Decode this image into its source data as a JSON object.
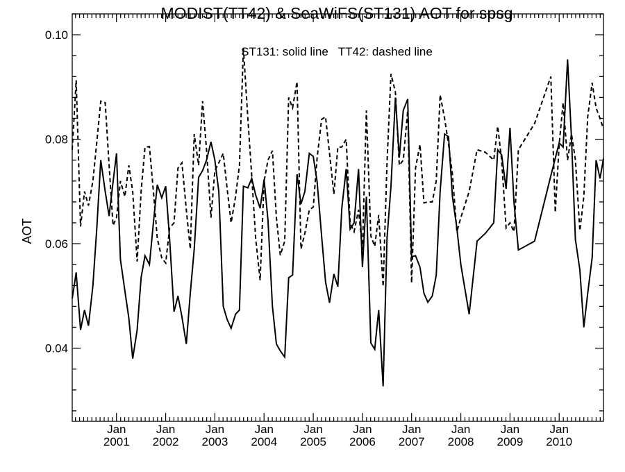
{
  "chart_data": {
    "type": "line",
    "title": "MODIST(TT42) & SeaWiFS(ST131)  AOT for spsg",
    "annotation": "ST131: solid line   TT42: dashed line",
    "xlabel": "",
    "ylabel": "AOT",
    "xlim": [
      2000.1,
      2010.9
    ],
    "ylim": [
      0.026,
      0.104
    ],
    "y_ticks": [
      0.04,
      0.06,
      0.08,
      0.1
    ],
    "y_tick_labels": [
      "0.04",
      "0.06",
      "0.08",
      "0.10"
    ],
    "x_ticks": [
      2001.0,
      2002.0,
      2003.0,
      2004.0,
      2005.0,
      2006.0,
      2007.0,
      2008.0,
      2009.0,
      2010.0
    ],
    "x_tick_month": "Jan",
    "x_tick_years": [
      "2001",
      "2002",
      "2003",
      "2004",
      "2005",
      "2006",
      "2007",
      "2008",
      "2009",
      "2010"
    ],
    "grid": false,
    "series": [
      {
        "name": "ST131",
        "style": "solid",
        "color": "#000000",
        "points": [
          [
            2000.1,
            0.0495
          ],
          [
            2000.18,
            0.0545
          ],
          [
            2000.27,
            0.0435
          ],
          [
            2000.35,
            0.0473
          ],
          [
            2000.43,
            0.0443
          ],
          [
            2000.52,
            0.052
          ],
          [
            2000.6,
            0.063
          ],
          [
            2000.68,
            0.076
          ],
          [
            2000.77,
            0.07
          ],
          [
            2000.85,
            0.0653
          ],
          [
            2000.93,
            0.0718
          ],
          [
            2001.0,
            0.0773
          ],
          [
            2001.08,
            0.057
          ],
          [
            2001.17,
            0.051
          ],
          [
            2001.25,
            0.0458
          ],
          [
            2001.33,
            0.038
          ],
          [
            2001.42,
            0.0435
          ],
          [
            2001.5,
            0.0535
          ],
          [
            2001.58,
            0.0577
          ],
          [
            2001.67,
            0.056
          ],
          [
            2001.75,
            0.064
          ],
          [
            2001.83,
            0.0713
          ],
          [
            2001.92,
            0.0688
          ],
          [
            2002.0,
            0.071
          ],
          [
            2002.08,
            0.061
          ],
          [
            2002.17,
            0.047
          ],
          [
            2002.25,
            0.05
          ],
          [
            2002.33,
            0.046
          ],
          [
            2002.42,
            0.0408
          ],
          [
            2002.5,
            0.0505
          ],
          [
            2002.58,
            0.059
          ],
          [
            2002.67,
            0.0727
          ],
          [
            2002.75,
            0.074
          ],
          [
            2002.83,
            0.076
          ],
          [
            2002.92,
            0.0795
          ],
          [
            2003.0,
            0.076
          ],
          [
            2003.08,
            0.07
          ],
          [
            2003.17,
            0.048
          ],
          [
            2003.25,
            0.0455
          ],
          [
            2003.33,
            0.0438
          ],
          [
            2003.42,
            0.0465
          ],
          [
            2003.5,
            0.0473
          ],
          [
            2003.58,
            0.071
          ],
          [
            2003.67,
            0.0707
          ],
          [
            2003.75,
            0.0725
          ],
          [
            2003.83,
            0.0693
          ],
          [
            2003.92,
            0.0668
          ],
          [
            2004.0,
            0.0723
          ],
          [
            2004.08,
            0.0645
          ],
          [
            2004.17,
            0.048
          ],
          [
            2004.25,
            0.0408
          ],
          [
            2004.33,
            0.0395
          ],
          [
            2004.42,
            0.0383
          ],
          [
            2004.5,
            0.0535
          ],
          [
            2004.58,
            0.054
          ],
          [
            2004.67,
            0.0733
          ],
          [
            2004.75,
            0.0676
          ],
          [
            2004.83,
            0.07
          ],
          [
            2004.92,
            0.0773
          ],
          [
            2005.0,
            0.0767
          ],
          [
            2005.08,
            0.0718
          ],
          [
            2005.17,
            0.0615
          ],
          [
            2005.25,
            0.0527
          ],
          [
            2005.33,
            0.0487
          ],
          [
            2005.42,
            0.0542
          ],
          [
            2005.5,
            0.0518
          ],
          [
            2005.58,
            0.0668
          ],
          [
            2005.67,
            0.0743
          ],
          [
            2005.75,
            0.0628
          ],
          [
            2005.83,
            0.064
          ],
          [
            2005.92,
            0.0743
          ],
          [
            2006.0,
            0.0555
          ],
          [
            2006.08,
            0.069
          ],
          [
            2006.17,
            0.041
          ],
          [
            2006.25,
            0.0398
          ],
          [
            2006.33,
            0.0473
          ],
          [
            2006.42,
            0.0327
          ],
          [
            2006.5,
            0.061
          ],
          [
            2006.58,
            0.071
          ],
          [
            2006.67,
            0.088
          ],
          [
            2006.75,
            0.0765
          ],
          [
            2006.83,
            0.0855
          ],
          [
            2006.92,
            0.0877
          ],
          [
            2007.0,
            0.0575
          ],
          [
            2007.08,
            0.0577
          ],
          [
            2007.17,
            0.0555
          ],
          [
            2007.25,
            0.0505
          ],
          [
            2007.33,
            0.0488
          ],
          [
            2007.42,
            0.05
          ],
          [
            2007.5,
            0.054
          ],
          [
            2007.58,
            0.07
          ],
          [
            2007.67,
            0.081
          ],
          [
            2007.75,
            0.0805
          ],
          [
            2007.83,
            0.069
          ],
          [
            2007.92,
            0.063
          ],
          [
            2008.0,
            0.056
          ],
          [
            2008.17,
            0.0465
          ],
          [
            2008.33,
            0.0605
          ],
          [
            2008.5,
            0.062
          ],
          [
            2008.67,
            0.064
          ],
          [
            2008.75,
            0.078
          ],
          [
            2008.83,
            0.077
          ],
          [
            2008.92,
            0.0705
          ],
          [
            2009.0,
            0.0822
          ],
          [
            2009.08,
            0.068
          ],
          [
            2009.17,
            0.0588
          ],
          [
            2009.5,
            0.0605
          ],
          [
            2009.83,
            0.073
          ],
          [
            2010.0,
            0.0793
          ],
          [
            2010.08,
            0.0785
          ],
          [
            2010.17,
            0.0953
          ],
          [
            2010.25,
            0.08
          ],
          [
            2010.33,
            0.0608
          ],
          [
            2010.42,
            0.055
          ],
          [
            2010.5,
            0.044
          ],
          [
            2010.58,
            0.0505
          ],
          [
            2010.67,
            0.0573
          ],
          [
            2010.75,
            0.076
          ],
          [
            2010.83,
            0.0725
          ],
          [
            2010.9,
            0.0763
          ]
        ]
      },
      {
        "name": "TT42",
        "style": "dashed",
        "color": "#000000",
        "points": [
          [
            2000.1,
            0.078
          ],
          [
            2000.18,
            0.0913
          ],
          [
            2000.27,
            0.0633
          ],
          [
            2000.35,
            0.07
          ],
          [
            2000.43,
            0.0673
          ],
          [
            2000.52,
            0.072
          ],
          [
            2000.6,
            0.0795
          ],
          [
            2000.68,
            0.0873
          ],
          [
            2000.77,
            0.087
          ],
          [
            2000.85,
            0.075
          ],
          [
            2000.93,
            0.0635
          ],
          [
            2001.0,
            0.065
          ],
          [
            2001.08,
            0.072
          ],
          [
            2001.17,
            0.069
          ],
          [
            2001.25,
            0.075
          ],
          [
            2001.33,
            0.07
          ],
          [
            2001.42,
            0.0566
          ],
          [
            2001.5,
            0.07
          ],
          [
            2001.58,
            0.0785
          ],
          [
            2001.67,
            0.0786
          ],
          [
            2001.75,
            0.07
          ],
          [
            2001.83,
            0.061
          ],
          [
            2001.92,
            0.0573
          ],
          [
            2002.0,
            0.0563
          ],
          [
            2002.08,
            0.063
          ],
          [
            2002.17,
            0.064
          ],
          [
            2002.25,
            0.0745
          ],
          [
            2002.33,
            0.0755
          ],
          [
            2002.42,
            0.0665
          ],
          [
            2002.5,
            0.059
          ],
          [
            2002.58,
            0.081
          ],
          [
            2002.67,
            0.075
          ],
          [
            2002.75,
            0.0873
          ],
          [
            2002.83,
            0.078
          ],
          [
            2002.92,
            0.065
          ],
          [
            2003.0,
            0.074
          ],
          [
            2003.08,
            0.0755
          ],
          [
            2003.17,
            0.0773
          ],
          [
            2003.25,
            0.0705
          ],
          [
            2003.33,
            0.064
          ],
          [
            2003.42,
            0.069
          ],
          [
            2003.5,
            0.075
          ],
          [
            2003.58,
            0.0975
          ],
          [
            2003.67,
            0.084
          ],
          [
            2003.75,
            0.073
          ],
          [
            2003.83,
            0.061
          ],
          [
            2003.92,
            0.053
          ],
          [
            2004.0,
            0.072
          ],
          [
            2004.08,
            0.076
          ],
          [
            2004.17,
            0.0778
          ],
          [
            2004.25,
            0.065
          ],
          [
            2004.33,
            0.0578
          ],
          [
            2004.42,
            0.0605
          ],
          [
            2004.5,
            0.088
          ],
          [
            2004.58,
            0.086
          ],
          [
            2004.67,
            0.091
          ],
          [
            2004.75,
            0.059
          ],
          [
            2004.83,
            0.062
          ],
          [
            2004.92,
            0.0665
          ],
          [
            2005.0,
            0.067
          ],
          [
            2005.08,
            0.0765
          ],
          [
            2005.17,
            0.0838
          ],
          [
            2005.25,
            0.0843
          ],
          [
            2005.33,
            0.0773
          ],
          [
            2005.42,
            0.0695
          ],
          [
            2005.5,
            0.0785
          ],
          [
            2005.58,
            0.0785
          ],
          [
            2005.67,
            0.08
          ],
          [
            2005.75,
            0.064
          ],
          [
            2005.83,
            0.0623
          ],
          [
            2005.92,
            0.0665
          ],
          [
            2006.0,
            0.0588
          ],
          [
            2006.08,
            0.0855
          ],
          [
            2006.17,
            0.0615
          ],
          [
            2006.25,
            0.0595
          ],
          [
            2006.33,
            0.0655
          ],
          [
            2006.42,
            0.0518
          ],
          [
            2006.5,
            0.0755
          ],
          [
            2006.58,
            0.0925
          ],
          [
            2006.67,
            0.089
          ],
          [
            2006.75,
            0.075
          ],
          [
            2006.83,
            0.076
          ],
          [
            2006.92,
            0.0855
          ],
          [
            2007.0,
            0.0525
          ],
          [
            2007.08,
            0.0745
          ],
          [
            2007.17,
            0.079
          ],
          [
            2007.25,
            0.0678
          ],
          [
            2007.33,
            0.068
          ],
          [
            2007.42,
            0.068
          ],
          [
            2007.5,
            0.072
          ],
          [
            2007.58,
            0.0885
          ],
          [
            2007.67,
            0.084
          ],
          [
            2007.75,
            0.079
          ],
          [
            2007.83,
            0.0733
          ],
          [
            2007.92,
            0.0623
          ],
          [
            2008.0,
            0.065
          ],
          [
            2008.17,
            0.07
          ],
          [
            2008.33,
            0.078
          ],
          [
            2008.5,
            0.0775
          ],
          [
            2008.67,
            0.076
          ],
          [
            2008.75,
            0.0825
          ],
          [
            2008.83,
            0.076
          ],
          [
            2008.92,
            0.063
          ],
          [
            2009.0,
            0.064
          ],
          [
            2009.08,
            0.0623
          ],
          [
            2009.17,
            0.078
          ],
          [
            2009.5,
            0.083
          ],
          [
            2009.83,
            0.092
          ],
          [
            2009.92,
            0.066
          ],
          [
            2010.0,
            0.079
          ],
          [
            2010.08,
            0.087
          ],
          [
            2010.17,
            0.076
          ],
          [
            2010.25,
            0.081
          ],
          [
            2010.33,
            0.076
          ],
          [
            2010.42,
            0.0625
          ],
          [
            2010.5,
            0.069
          ],
          [
            2010.58,
            0.0843
          ],
          [
            2010.67,
            0.0908
          ],
          [
            2010.75,
            0.086
          ],
          [
            2010.83,
            0.084
          ],
          [
            2010.9,
            0.082
          ]
        ]
      }
    ]
  }
}
